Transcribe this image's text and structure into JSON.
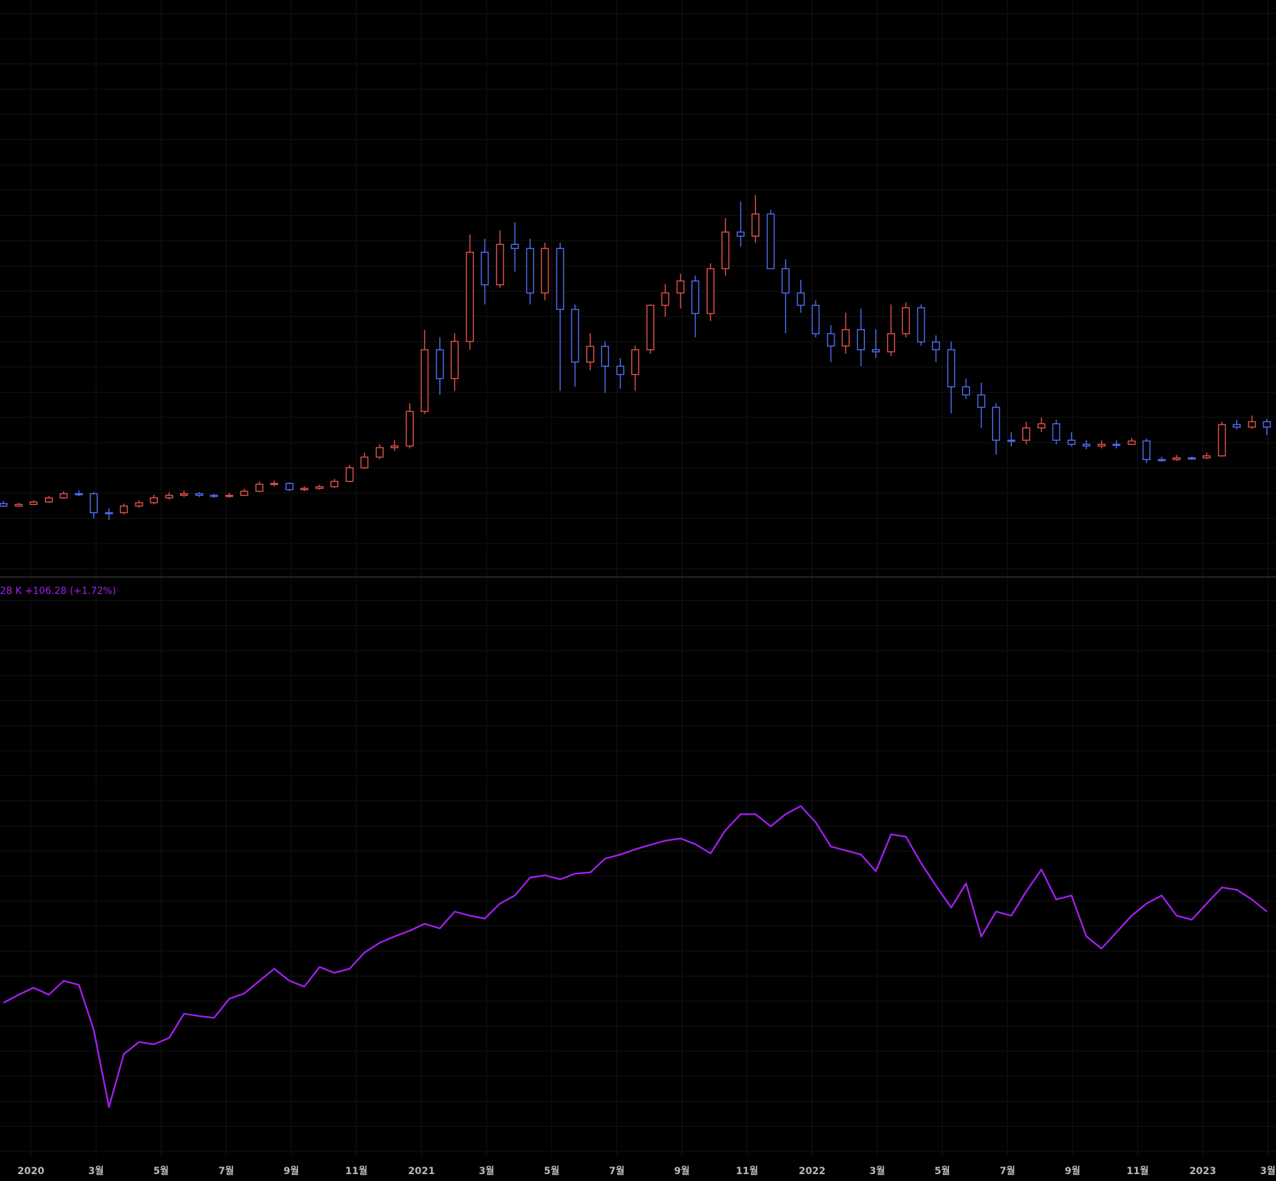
{
  "chart_data": [
    {
      "type": "candlestick",
      "x": [
        2019.93,
        2019.969,
        2020.007,
        2020.046,
        2020.084,
        2020.123,
        2020.161,
        2020.2,
        2020.238,
        2020.277,
        2020.315,
        2020.354,
        2020.392,
        2020.431,
        2020.469,
        2020.508,
        2020.546,
        2020.585,
        2020.623,
        2020.662,
        2020.7,
        2020.739,
        2020.777,
        2020.816,
        2020.854,
        2020.893,
        2020.931,
        2020.97,
        2021.008,
        2021.047,
        2021.085,
        2021.124,
        2021.162,
        2021.201,
        2021.239,
        2021.278,
        2021.316,
        2021.355,
        2021.393,
        2021.432,
        2021.47,
        2021.509,
        2021.547,
        2021.586,
        2021.624,
        2021.663,
        2021.701,
        2021.74,
        2021.778,
        2021.817,
        2021.855,
        2021.894,
        2021.932,
        2021.971,
        2022.009,
        2022.048,
        2022.086,
        2022.125,
        2022.163,
        2022.202,
        2022.24,
        2022.279,
        2022.317,
        2022.356,
        2022.394,
        2022.433,
        2022.471,
        2022.51,
        2022.548,
        2022.587,
        2022.625,
        2022.664,
        2022.702,
        2022.741,
        2022.779,
        2022.818,
        2022.856,
        2022.895,
        2022.933,
        2022.972,
        2023.01,
        2023.049,
        2023.087,
        2023.126,
        2023.164
      ],
      "open": [
        17.6,
        17,
        17.4,
        18,
        19,
        20,
        20,
        15.4,
        15.4,
        17,
        17.8,
        19,
        19.6,
        20,
        19.6,
        19.4,
        19.6,
        20.6,
        22.3,
        22.5,
        21,
        21.3,
        21.7,
        23,
        26.3,
        28.9,
        31.2,
        31.6,
        40,
        55,
        48,
        57,
        78.7,
        70.8,
        80.6,
        79.6,
        68.8,
        79.6,
        64.8,
        52,
        55.8,
        51,
        49,
        55,
        65.8,
        68.8,
        71.7,
        63.8,
        74.7,
        83.6,
        82.6,
        88,
        74.7,
        68.8,
        65.8,
        58.9,
        55.9,
        59.9,
        55,
        54.5,
        58.9,
        65.2,
        56.9,
        55,
        46,
        44,
        41,
        33,
        33,
        36,
        37,
        33,
        32,
        31.6,
        32,
        32,
        32.8,
        28.3,
        28.3,
        28.7,
        28.7,
        29.2,
        36.8,
        36.2,
        37.5
      ],
      "high": [
        18.2,
        17.8,
        18.4,
        19.4,
        20.6,
        20.8,
        20.4,
        16.4,
        17.6,
        18.4,
        19.8,
        20.4,
        20.8,
        20.4,
        20,
        20.2,
        21.2,
        23,
        23.2,
        22.8,
        21.8,
        22.2,
        23.6,
        27,
        30,
        32,
        33,
        42,
        59.8,
        58,
        59,
        83,
        82,
        84,
        86,
        82,
        81,
        81,
        66,
        59,
        57,
        53,
        56,
        66,
        71,
        73.5,
        73,
        76,
        87,
        91,
        92.6,
        89,
        77,
        72,
        67,
        61,
        64,
        65,
        60,
        66,
        66.5,
        66,
        58.5,
        57,
        48,
        47,
        42,
        35,
        37.5,
        38.5,
        38,
        35,
        33,
        33,
        33,
        33.6,
        33.4,
        29,
        29.4,
        29,
        30,
        37.5,
        38,
        39,
        38.2
      ],
      "low": [
        16.8,
        16.8,
        17.2,
        17.8,
        18.8,
        19.4,
        14,
        13.6,
        15,
        16.6,
        17.4,
        18.6,
        19.2,
        19.2,
        19,
        19,
        19.4,
        20.4,
        21.8,
        20.6,
        20.6,
        21,
        21.4,
        22.8,
        26,
        28.4,
        30.4,
        31,
        39.4,
        44,
        45,
        55,
        66,
        70,
        74,
        66,
        67,
        45,
        46,
        50,
        44.5,
        45.5,
        45,
        54,
        63,
        65,
        58,
        62,
        73,
        80,
        81,
        76,
        59,
        64,
        58,
        52,
        54,
        51,
        53,
        53.5,
        58,
        56,
        52,
        39.5,
        43,
        36,
        29.5,
        31.5,
        32,
        35,
        32,
        31.5,
        30.8,
        31,
        31,
        31.8,
        27.5,
        27.8,
        28,
        28.2,
        28.4,
        29,
        35.6,
        35.8,
        34.2
      ],
      "close": [
        17,
        17.4,
        18,
        19,
        20,
        20,
        15.4,
        15.4,
        17,
        17.8,
        19,
        19.6,
        20,
        19.6,
        19.4,
        19.6,
        20.6,
        22.3,
        22.5,
        21,
        21.3,
        21.7,
        23,
        26.3,
        28.9,
        31.2,
        31.6,
        40,
        55,
        48,
        57,
        78.7,
        70.8,
        80.6,
        79.6,
        68.8,
        79.6,
        64.8,
        52,
        55.8,
        51,
        49,
        55,
        65.8,
        68.8,
        71.7,
        63.8,
        74.7,
        83.6,
        82.6,
        88,
        74.7,
        68.8,
        65.8,
        58.9,
        55.9,
        59.9,
        55,
        54.5,
        58.9,
        65.2,
        56.9,
        55,
        46,
        44,
        41,
        33,
        33,
        36,
        37,
        33,
        32,
        31.6,
        32,
        32,
        32.8,
        28.3,
        28.3,
        28.7,
        28.7,
        29.2,
        36.8,
        36.2,
        37.5,
        36.2
      ],
      "up_color": "#e0504a",
      "down_color": "#4f6bf0",
      "xlim": [
        2019.921,
        2023.1875
      ],
      "ylim": [
        0,
        140
      ]
    },
    {
      "type": "line",
      "annotation": "28 K  +106.28 (+1.72%)",
      "x": [
        2019.93,
        2019.969,
        2020.007,
        2020.046,
        2020.084,
        2020.123,
        2020.161,
        2020.2,
        2020.238,
        2020.277,
        2020.315,
        2020.354,
        2020.392,
        2020.431,
        2020.469,
        2020.508,
        2020.546,
        2020.585,
        2020.623,
        2020.662,
        2020.7,
        2020.739,
        2020.777,
        2020.816,
        2020.854,
        2020.893,
        2020.931,
        2020.97,
        2021.008,
        2021.047,
        2021.085,
        2021.124,
        2021.162,
        2021.201,
        2021.239,
        2021.278,
        2021.316,
        2021.355,
        2021.393,
        2021.432,
        2021.47,
        2021.509,
        2021.547,
        2021.586,
        2021.624,
        2021.663,
        2021.701,
        2021.74,
        2021.778,
        2021.817,
        2021.855,
        2021.894,
        2021.932,
        2021.971,
        2022.009,
        2022.048,
        2022.086,
        2022.125,
        2022.163,
        2022.202,
        2022.24,
        2022.279,
        2022.317,
        2022.356,
        2022.394,
        2022.433,
        2022.471,
        2022.51,
        2022.548,
        2022.587,
        2022.625,
        2022.664,
        2022.702,
        2022.741,
        2022.779,
        2022.818,
        2022.856,
        2022.895,
        2022.933,
        2022.972,
        2023.01,
        2023.049,
        2023.087,
        2023.126,
        2023.164
      ],
      "values": [
        26.6,
        28,
        29.2,
        28,
        30.4,
        29.7,
        21.9,
        8.5,
        17.7,
        19.8,
        19.4,
        20.5,
        24.7,
        24.3,
        24,
        27.3,
        28.2,
        30.4,
        32.5,
        30.4,
        29.4,
        32.8,
        31.8,
        32.5,
        35.3,
        37,
        38.1,
        39.1,
        40.3,
        39.5,
        42.4,
        41.7,
        41.2,
        43.8,
        45.2,
        48.3,
        48.7,
        48,
        49,
        49.2,
        51.6,
        52.3,
        53.2,
        54,
        54.7,
        55.1,
        54.1,
        52.5,
        56.5,
        59.3,
        59.3,
        57.2,
        59.3,
        60.7,
        57.9,
        53.7,
        53,
        52.3,
        49.4,
        55.8,
        55.4,
        50.8,
        46.9,
        43.1,
        47.3,
        38.1,
        42.4,
        41.7,
        45.9,
        49.7,
        44.5,
        45.2,
        38.1,
        36,
        38.8,
        41.7,
        43.8,
        45.2,
        41.7,
        41,
        43.8,
        46.6,
        46.2,
        44.5,
        42.4
      ],
      "color": "#a41ff0",
      "xlim": [
        2019.921,
        2023.1875
      ],
      "ylim": [
        0,
        100
      ],
      "xticks": [
        {
          "value": 2020,
          "label": "2020"
        },
        {
          "value": 2020.1667,
          "label": "3월"
        },
        {
          "value": 2020.3333,
          "label": "5월"
        },
        {
          "value": 2020.5,
          "label": "7월"
        },
        {
          "value": 2020.6667,
          "label": "9월"
        },
        {
          "value": 2020.8333,
          "label": "11월"
        },
        {
          "value": 2021,
          "label": "2021"
        },
        {
          "value": 2021.1667,
          "label": "3월"
        },
        {
          "value": 2021.3333,
          "label": "5월"
        },
        {
          "value": 2021.5,
          "label": "7월"
        },
        {
          "value": 2021.6667,
          "label": "9월"
        },
        {
          "value": 2021.8333,
          "label": "11월"
        },
        {
          "value": 2022,
          "label": "2022"
        },
        {
          "value": 2022.1667,
          "label": "3월"
        },
        {
          "value": 2022.3333,
          "label": "5월"
        },
        {
          "value": 2022.5,
          "label": "7월"
        },
        {
          "value": 2022.6667,
          "label": "9월"
        },
        {
          "value": 2022.8333,
          "label": "11월"
        },
        {
          "value": 2023,
          "label": "2023"
        },
        {
          "value": 2023.1667,
          "label": "3월"
        }
      ]
    }
  ]
}
